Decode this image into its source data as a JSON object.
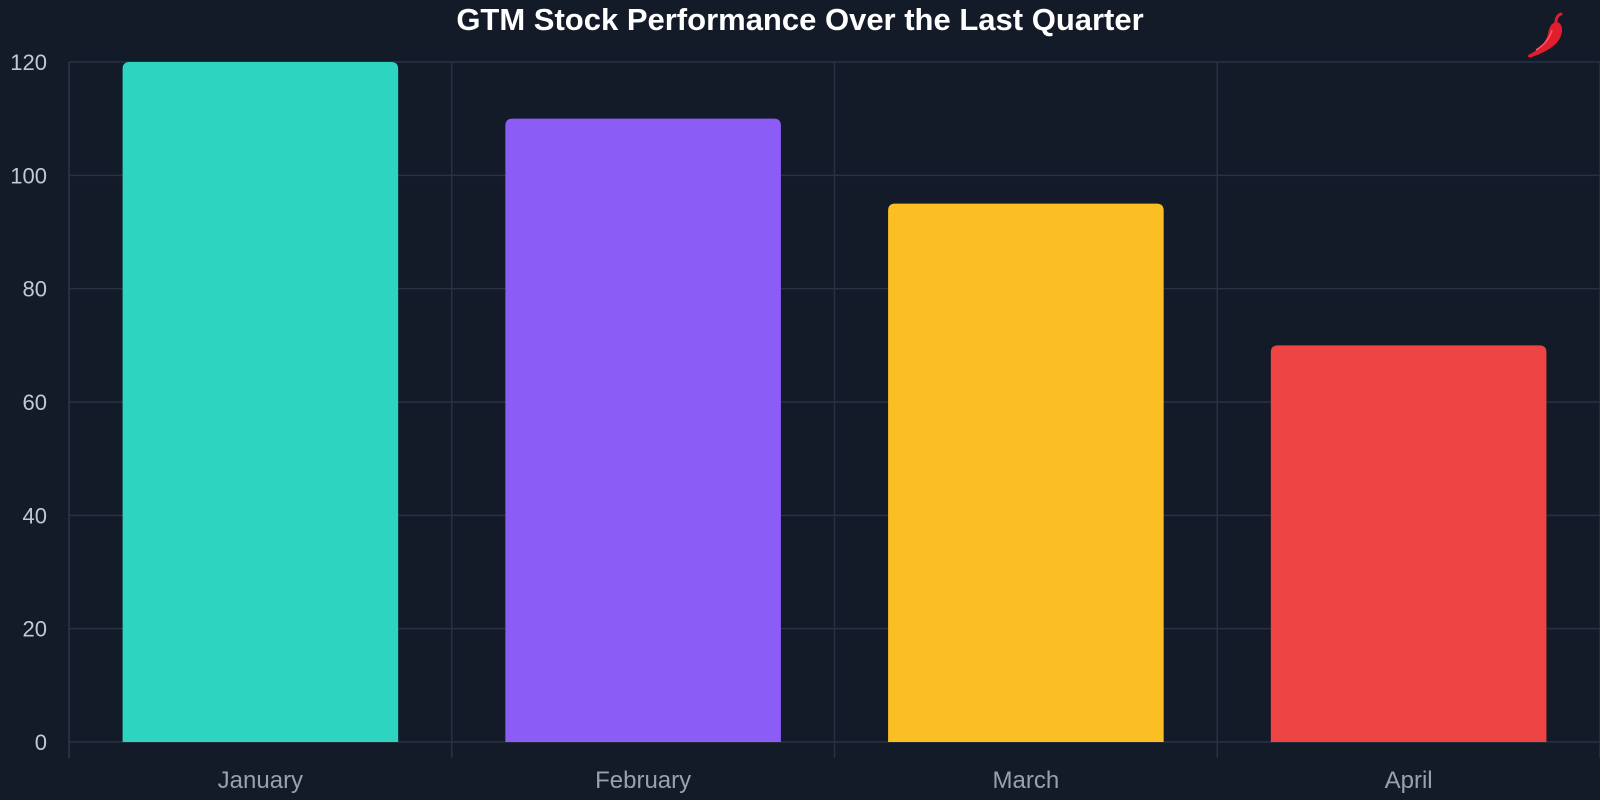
{
  "chart_data": {
    "type": "bar",
    "title": "GTM Stock Performance Over the Last Quarter",
    "categories": [
      "January",
      "February",
      "March",
      "April"
    ],
    "values": [
      120,
      110,
      95,
      70
    ],
    "colors": [
      "#2dd4bf",
      "#8b5cf6",
      "#fbbf24",
      "#ef4444"
    ],
    "xlabel": "",
    "ylabel": "",
    "ylim": [
      0,
      120
    ],
    "yticks": [
      0,
      20,
      40,
      60,
      80,
      100,
      120
    ],
    "grid": true,
    "legend": "none"
  },
  "theme": {
    "background": "#131a28"
  },
  "logo": {
    "icon": "chili-pepper-icon",
    "color": "#e11d2e"
  }
}
